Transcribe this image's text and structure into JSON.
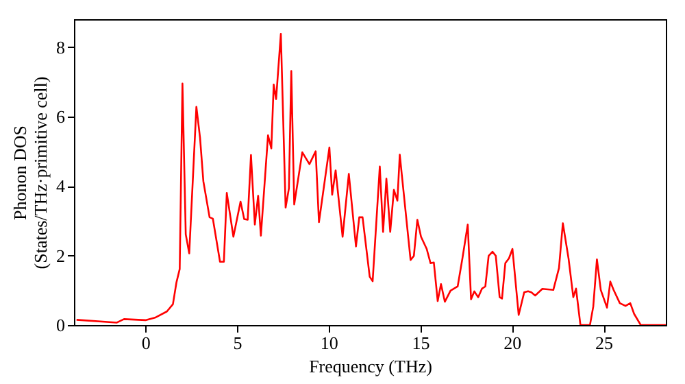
{
  "chart_data": {
    "type": "line",
    "xlabel": "Frequency (THz)",
    "ylabel": "Phonon DOS\n(States/THz·primitive cell)",
    "x": [
      -3.76,
      -1.56,
      -1.17,
      0,
      0.52,
      1.17,
      1.5,
      1.69,
      1.87,
      2.02,
      2.2,
      2.39,
      2.78,
      2.98,
      3.16,
      3.5,
      3.68,
      4.07,
      4.28,
      4.44,
      4.8,
      5.19,
      5.39,
      5.58,
      5.76,
      5.97,
      6.15,
      6.3,
      6.69,
      6.87,
      7.0,
      7.13,
      7.39,
      7.65,
      7.83,
      7.96,
      8.12,
      8.56,
      8.95,
      9.29,
      9.47,
      10.04,
      10.19,
      10.38,
      10.76,
      11.1,
      11.49,
      11.67,
      11.85,
      12.24,
      12.4,
      12.79,
      12.97,
      13.15,
      13.36,
      13.56,
      13.75,
      13.88,
      14.47,
      14.65,
      14.84,
      15.04,
      15.35,
      15.56,
      15.74,
      15.95,
      16.13,
      16.34,
      16.65,
      17.04,
      17.3,
      17.59,
      17.77,
      17.95,
      18.16,
      18.37,
      18.55,
      18.73,
      18.94,
      19.12,
      19.33,
      19.46,
      19.64,
      19.84,
      20.03,
      20.37,
      20.67,
      20.88,
      21.06,
      21.27,
      21.66,
      22.26,
      22.57,
      22.78,
      23.09,
      23.35,
      23.5,
      23.74,
      24.26,
      24.44,
      24.64,
      24.85,
      25.19,
      25.37,
      25.55,
      25.89,
      26.2,
      26.46,
      26.67,
      27.03,
      28.4
    ],
    "series": [
      {
        "color": "#ff0000",
        "values": [
          0.15,
          0.07,
          0.17,
          0.14,
          0.21,
          0.39,
          0.6,
          1.22,
          1.61,
          6.95,
          2.61,
          2.06,
          6.28,
          5.39,
          4.14,
          3.1,
          3.06,
          1.82,
          1.82,
          3.8,
          2.54,
          3.55,
          3.05,
          3.03,
          4.89,
          2.89,
          3.72,
          2.57,
          5.46,
          5.08,
          6.92,
          6.5,
          8.38,
          3.38,
          3.93,
          7.31,
          3.47,
          4.97,
          4.63,
          5.0,
          2.96,
          5.11,
          3.75,
          4.45,
          2.54,
          4.35,
          2.26,
          3.1,
          3.1,
          1.39,
          1.26,
          4.56,
          2.68,
          4.21,
          2.68,
          3.89,
          3.58,
          4.9,
          1.87,
          1.99,
          3.03,
          2.54,
          2.19,
          1.78,
          1.8,
          0.69,
          1.18,
          0.67,
          0.99,
          1.11,
          1.92,
          2.89,
          0.74,
          0.97,
          0.8,
          1.05,
          1.11,
          1.99,
          2.11,
          1.99,
          0.8,
          0.76,
          1.78,
          1.92,
          2.19,
          0.29,
          0.94,
          0.97,
          0.94,
          0.85,
          1.04,
          1.01,
          1.64,
          2.93,
          1.92,
          0.8,
          1.05,
          0,
          0,
          0.53,
          1.89,
          1.01,
          0.5,
          1.25,
          1.01,
          0.63,
          0.55,
          0.63,
          0.32,
          0,
          0
        ]
      }
    ],
    "xlim": [
      -3.9,
      28.4
    ],
    "ylim": [
      0,
      8.8
    ],
    "xticks": [
      0,
      5,
      10,
      15,
      20,
      25
    ],
    "yticks": [
      0,
      2,
      4,
      6,
      8
    ],
    "grid": false,
    "marker": "none",
    "line_style": "solid"
  }
}
